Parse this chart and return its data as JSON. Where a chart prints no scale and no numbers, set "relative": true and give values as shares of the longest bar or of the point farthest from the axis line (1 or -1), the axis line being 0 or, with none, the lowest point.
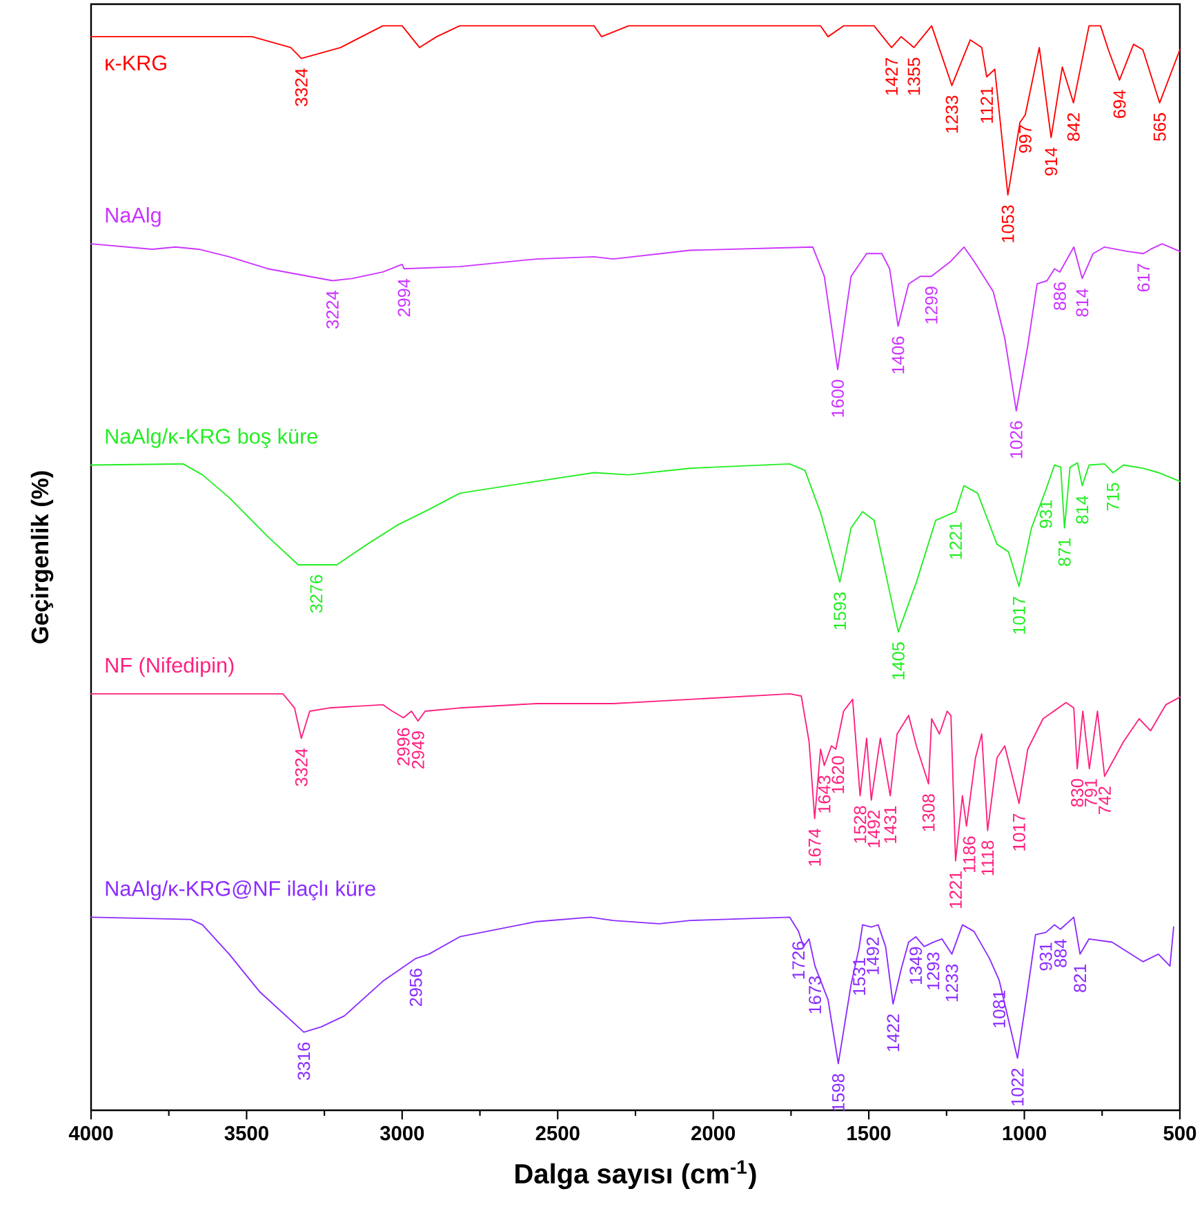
{
  "chart_data": {
    "type": "line",
    "relative": true,
    "xlabel": "Dalga sayısı (cm$^{-1}$)",
    "ylabel": "Geçirgenlik (%)",
    "xlim": [
      4000,
      500
    ],
    "xticks": [
      4000,
      3500,
      3000,
      2500,
      2000,
      1500,
      1000,
      500
    ],
    "series": [
      {
        "name": "κ-KRG",
        "color": "#ff0000",
        "x": [
          4000,
          3803,
          3704,
          3556,
          3482,
          3358,
          3324,
          3198,
          3062,
          3000,
          2944,
          2889,
          2815,
          2568,
          2383,
          2359,
          2272,
          1655,
          1631,
          1581,
          1483,
          1427,
          1396,
          1355,
          1298,
          1233,
          1174,
          1137,
          1121,
          1095,
          1053,
          1014,
          997,
          952,
          914,
          878,
          842,
          792,
          755,
          730,
          694,
          649,
          619,
          565,
          500
        ],
        "values": [
          0.99,
          0.99,
          0.99,
          0.99,
          0.99,
          0.98,
          0.97,
          0.98,
          1.0,
          1.0,
          0.98,
          0.99,
          1.0,
          1.0,
          1.0,
          0.99,
          1.0,
          1.0,
          0.99,
          1.0,
          1.0,
          0.98,
          0.99,
          0.98,
          1.0,
          0.945,
          0.987,
          0.98,
          0.953,
          0.96,
          0.844,
          0.911,
          0.918,
          0.98,
          0.897,
          0.962,
          0.929,
          1.0,
          1.0,
          0.978,
          0.95,
          0.983,
          0.978,
          0.929,
          0.978
        ]
      },
      {
        "name": "NaAlg",
        "color": "#cc33ff",
        "x": [
          4000,
          3803,
          3729,
          3654,
          3556,
          3432,
          3224,
          3161,
          3062,
          3000,
          2994,
          2815,
          2568,
          2383,
          2322,
          2075,
          1680,
          1643,
          1600,
          1557,
          1507,
          1458,
          1433,
          1406,
          1372,
          1335,
          1299,
          1236,
          1194,
          1162,
          1100,
          1063,
          1026,
          989,
          959,
          927,
          903,
          886,
          841,
          814,
          779,
          742,
          668,
          617,
          594,
          557,
          500
        ],
        "values": [
          0.799,
          0.794,
          0.796,
          0.794,
          0.787,
          0.776,
          0.765,
          0.767,
          0.773,
          0.78,
          0.776,
          0.778,
          0.785,
          0.787,
          0.785,
          0.793,
          0.796,
          0.769,
          0.683,
          0.769,
          0.79,
          0.79,
          0.776,
          0.723,
          0.762,
          0.769,
          0.769,
          0.783,
          0.796,
          0.783,
          0.755,
          0.712,
          0.645,
          0.705,
          0.762,
          0.765,
          0.776,
          0.773,
          0.796,
          0.767,
          0.79,
          0.796,
          0.792,
          0.79,
          0.794,
          0.799,
          0.792
        ]
      },
      {
        "name": "NaAlg/κ-KRG  boş küre",
        "color": "#22ee22",
        "x": [
          4000,
          3704,
          3642,
          3556,
          3432,
          3334,
          3276,
          3210,
          3112,
          3013,
          2914,
          2815,
          2568,
          2383,
          2272,
          2075,
          2001,
          1754,
          1705,
          1655,
          1593,
          1557,
          1520,
          1483,
          1405,
          1347,
          1285,
          1221,
          1194,
          1150,
          1088,
          1051,
          1017,
          977,
          931,
          903,
          883,
          871,
          853,
          829,
          814,
          792,
          742,
          715,
          681,
          619,
          569,
          500
        ],
        "values": [
          0.595,
          0.596,
          0.586,
          0.565,
          0.529,
          0.503,
          0.503,
          0.503,
          0.522,
          0.54,
          0.554,
          0.569,
          0.58,
          0.588,
          0.586,
          0.592,
          0.593,
          0.596,
          0.59,
          0.551,
          0.487,
          0.537,
          0.552,
          0.544,
          0.441,
          0.487,
          0.544,
          0.552,
          0.576,
          0.569,
          0.522,
          0.515,
          0.483,
          0.537,
          0.572,
          0.595,
          0.593,
          0.537,
          0.593,
          0.597,
          0.576,
          0.595,
          0.596,
          0.588,
          0.595,
          0.592,
          0.588,
          0.58
        ]
      },
      {
        "name": "NF (Nifedipin)",
        "color": "#ff2080",
        "x": [
          4000,
          3383,
          3346,
          3324,
          3297,
          3235,
          3062,
          3037,
          2996,
          2970,
          2949,
          2926,
          2815,
          2568,
          2322,
          1754,
          1717,
          1692,
          1674,
          1655,
          1643,
          1620,
          1606,
          1581,
          1552,
          1528,
          1507,
          1492,
          1463,
          1431,
          1409,
          1372,
          1347,
          1308,
          1298,
          1273,
          1248,
          1236,
          1221,
          1199,
          1186,
          1157,
          1137,
          1118,
          1088,
          1063,
          1017,
          989,
          940,
          866,
          841,
          830,
          812,
          791,
          765,
          742,
          681,
          631,
          594,
          545,
          500
        ],
        "values": [
          0.384,
          0.384,
          0.371,
          0.343,
          0.368,
          0.371,
          0.374,
          0.369,
          0.362,
          0.368,
          0.359,
          0.368,
          0.371,
          0.375,
          0.375,
          0.384,
          0.382,
          0.34,
          0.269,
          0.333,
          0.318,
          0.336,
          0.333,
          0.368,
          0.379,
          0.29,
          0.343,
          0.286,
          0.343,
          0.29,
          0.347,
          0.364,
          0.336,
          0.301,
          0.361,
          0.347,
          0.368,
          0.364,
          0.23,
          0.29,
          0.262,
          0.325,
          0.347,
          0.258,
          0.325,
          0.336,
          0.283,
          0.333,
          0.361,
          0.376,
          0.371,
          0.315,
          0.368,
          0.315,
          0.368,
          0.308,
          0.34,
          0.361,
          0.35,
          0.374,
          0.381
        ]
      },
      {
        "name": "NaAlg/κ-KRG@NF  ilaçlı küre",
        "color": "#8c2bff",
        "x": [
          4000,
          3679,
          3642,
          3556,
          3457,
          3316,
          3260,
          3186,
          3062,
          2956,
          2914,
          2815,
          2568,
          2395,
          2322,
          2174,
          2075,
          1754,
          1726,
          1710,
          1692,
          1673,
          1631,
          1598,
          1557,
          1531,
          1520,
          1492,
          1470,
          1446,
          1422,
          1396,
          1372,
          1349,
          1322,
          1293,
          1265,
          1233,
          1199,
          1162,
          1112,
          1081,
          1063,
          1022,
          994,
          964,
          931,
          903,
          884,
          841,
          821,
          792,
          718,
          619,
          569,
          532,
          520
        ],
        "values": [
          0.178,
          0.176,
          0.171,
          0.144,
          0.109,
          0.072,
          0.077,
          0.087,
          0.119,
          0.14,
          0.144,
          0.16,
          0.174,
          0.178,
          0.175,
          0.172,
          0.175,
          0.178,
          0.165,
          0.151,
          0.158,
          0.133,
          0.102,
          0.043,
          0.116,
          0.15,
          0.171,
          0.169,
          0.171,
          0.151,
          0.098,
          0.13,
          0.155,
          0.16,
          0.151,
          0.155,
          0.158,
          0.144,
          0.171,
          0.165,
          0.14,
          0.12,
          0.098,
          0.048,
          0.102,
          0.162,
          0.164,
          0.171,
          0.167,
          0.178,
          0.144,
          0.158,
          0.155,
          0.137,
          0.144,
          0.133,
          0.169
        ]
      }
    ],
    "annotations": [
      {
        "text": "3324",
        "x": 3324,
        "y": 0.97
      },
      {
        "text": "1427",
        "x": 1427,
        "y": 0.98
      },
      {
        "text": "1355",
        "x": 1355,
        "y": 0.98
      },
      {
        "text": "1233",
        "x": 1233,
        "y": 0.945
      },
      {
        "text": "1121",
        "x": 1121,
        "y": 0.953
      },
      {
        "text": "1053",
        "x": 1053,
        "y": 0.844
      },
      {
        "text": "997",
        "x": 997,
        "y": 0.918
      },
      {
        "text": "914",
        "x": 914,
        "y": 0.897
      },
      {
        "text": "842",
        "x": 842,
        "y": 0.929
      },
      {
        "text": "694",
        "x": 694,
        "y": 0.95
      },
      {
        "text": "565",
        "x": 565,
        "y": 0.929
      },
      {
        "text": "3224",
        "x": 3224,
        "y": 0.765
      },
      {
        "text": "2994",
        "x": 2994,
        "y": 0.776
      },
      {
        "text": "1600",
        "x": 1600,
        "y": 0.683
      },
      {
        "text": "1406",
        "x": 1406,
        "y": 0.723
      },
      {
        "text": "1299",
        "x": 1299,
        "y": 0.769
      },
      {
        "text": "1026",
        "x": 1026,
        "y": 0.645
      },
      {
        "text": "886",
        "x": 886,
        "y": 0.773
      },
      {
        "text": "814",
        "x": 814,
        "y": 0.767
      },
      {
        "text": "617",
        "x": 617,
        "y": 0.79
      },
      {
        "text": "3276",
        "x": 3276,
        "y": 0.503
      },
      {
        "text": "1593",
        "x": 1593,
        "y": 0.487
      },
      {
        "text": "1405",
        "x": 1405,
        "y": 0.441
      },
      {
        "text": "1221",
        "x": 1221,
        "y": 0.552
      },
      {
        "text": "1017",
        "x": 1017,
        "y": 0.483
      },
      {
        "text": "931",
        "x": 931,
        "y": 0.572
      },
      {
        "text": "871",
        "x": 871,
        "y": 0.537
      },
      {
        "text": "814",
        "x": 814,
        "y": 0.576
      },
      {
        "text": "715",
        "x": 715,
        "y": 0.588
      },
      {
        "text": "3324",
        "x": 3324,
        "y": 0.343
      },
      {
        "text": "2996",
        "x": 2996,
        "y": 0.362
      },
      {
        "text": "2949",
        "x": 2949,
        "y": 0.359
      },
      {
        "text": "1674",
        "x": 1674,
        "y": 0.269
      },
      {
        "text": "1643",
        "x": 1643,
        "y": 0.318
      },
      {
        "text": "1620",
        "x": 1620,
        "y": 0.336
      },
      {
        "text": "1528",
        "x": 1528,
        "y": 0.29
      },
      {
        "text": "1492",
        "x": 1492,
        "y": 0.286
      },
      {
        "text": "1431",
        "x": 1431,
        "y": 0.29
      },
      {
        "text": "1308",
        "x": 1308,
        "y": 0.301
      },
      {
        "text": "1221",
        "x": 1221,
        "y": 0.23
      },
      {
        "text": "1186",
        "x": 1186,
        "y": 0.262
      },
      {
        "text": "1118",
        "x": 1118,
        "y": 0.258
      },
      {
        "text": "1017",
        "x": 1017,
        "y": 0.283
      },
      {
        "text": "830",
        "x": 830,
        "y": 0.315
      },
      {
        "text": "791",
        "x": 791,
        "y": 0.315
      },
      {
        "text": "742",
        "x": 742,
        "y": 0.308
      },
      {
        "text": "3316",
        "x": 3316,
        "y": 0.072
      },
      {
        "text": "2956",
        "x": 2956,
        "y": 0.14
      },
      {
        "text": "1726",
        "x": 1726,
        "y": 0.165
      },
      {
        "text": "1673",
        "x": 1673,
        "y": 0.133
      },
      {
        "text": "1598",
        "x": 1598,
        "y": 0.043
      },
      {
        "text": "1531",
        "x": 1531,
        "y": 0.15
      },
      {
        "text": "1492",
        "x": 1492,
        "y": 0.169
      },
      {
        "text": "1422",
        "x": 1422,
        "y": 0.098
      },
      {
        "text": "1349",
        "x": 1349,
        "y": 0.16
      },
      {
        "text": "1293",
        "x": 1293,
        "y": 0.155
      },
      {
        "text": "1233",
        "x": 1233,
        "y": 0.144
      },
      {
        "text": "1081",
        "x": 1081,
        "y": 0.12
      },
      {
        "text": "1022",
        "x": 1022,
        "y": 0.048
      },
      {
        "text": "931",
        "x": 931,
        "y": 0.164
      },
      {
        "text": "884",
        "x": 884,
        "y": 0.167
      },
      {
        "text": "821",
        "x": 821,
        "y": 0.144
      }
    ]
  }
}
